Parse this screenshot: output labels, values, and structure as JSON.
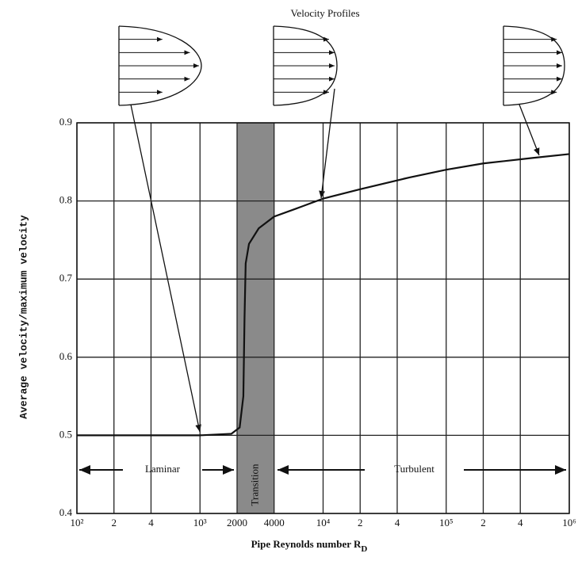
{
  "chart_data": {
    "type": "line",
    "title": "Velocity Profiles",
    "x_label": "Pipe Reynolds number R",
    "x_label_subscript": "D",
    "y_label": "Average velocity/maximum velocity",
    "log_x": true,
    "grid": true,
    "xlim": [
      100,
      1000000
    ],
    "ylim": [
      0.4,
      0.9
    ],
    "xticks": [
      {
        "value": 100,
        "label": "10²"
      },
      {
        "value": 200,
        "label": "2"
      },
      {
        "value": 400,
        "label": "4"
      },
      {
        "value": 1000,
        "label": "10³"
      },
      2000,
      4000,
      {
        "value": 10000,
        "label": "10⁴"
      },
      {
        "value": 20000,
        "label": "2"
      },
      {
        "value": 40000,
        "label": "4"
      },
      {
        "value": 100000,
        "label": "10⁵"
      },
      {
        "value": 200000,
        "label": "2"
      },
      {
        "value": 400000,
        "label": "4"
      },
      {
        "value": 1000000,
        "label": "10⁶"
      }
    ],
    "yticks": [
      0.4,
      0.5,
      0.6,
      0.7,
      0.8,
      0.9
    ],
    "transition_band": [
      2000,
      4000
    ],
    "band_label": "Transition",
    "regions": [
      "Laminar",
      "Turbulent"
    ],
    "series": [
      {
        "color": "#111111",
        "x": [
          100,
          1000,
          1800,
          2100,
          2250,
          2300,
          2350,
          2500,
          3000,
          4000,
          6000,
          10000,
          20000,
          50000,
          100000,
          200000,
          500000,
          1000000
        ],
        "values": [
          0.5,
          0.5,
          0.502,
          0.51,
          0.55,
          0.65,
          0.72,
          0.745,
          0.765,
          0.78,
          0.79,
          0.803,
          0.815,
          0.83,
          0.84,
          0.848,
          0.855,
          0.86
        ]
      }
    ]
  }
}
